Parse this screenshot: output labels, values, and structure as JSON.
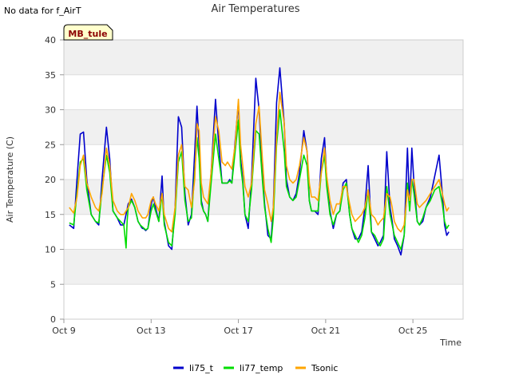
{
  "notice": "No data for f_AirT",
  "badge": "MB_tule",
  "colors": {
    "li75_t": "#0000cc",
    "li77_temp": "#00dd00",
    "Tsonic": "#ffa500",
    "band": "#f0f0f0",
    "grid": "#dddddd",
    "badge_fill": "#ffffcc"
  },
  "chart_data": {
    "type": "line",
    "title": "Air Temperatures",
    "xlabel": "Time",
    "ylabel": "Air Temperature (C)",
    "xlim": [
      9,
      27.3
    ],
    "ylim": [
      0,
      40
    ],
    "yticks": [
      0,
      5,
      10,
      15,
      20,
      25,
      30,
      35,
      40
    ],
    "xticks": [
      {
        "value": 9,
        "label": "Oct 9"
      },
      {
        "value": 13,
        "label": "Oct 13"
      },
      {
        "value": 17,
        "label": "Oct 17"
      },
      {
        "value": 21,
        "label": "Oct 21"
      },
      {
        "value": 25,
        "label": "Oct 25"
      }
    ],
    "legend_position": "bottom-center",
    "series": [
      {
        "name": "li75_t",
        "x": [
          9.25,
          9.45,
          9.6,
          9.75,
          9.9,
          10.05,
          10.25,
          10.45,
          10.6,
          10.75,
          10.95,
          11.1,
          11.25,
          11.45,
          11.6,
          11.75,
          11.95,
          12.1,
          12.25,
          12.4,
          12.5,
          12.55,
          12.6,
          12.65,
          12.75,
          12.85,
          13.0,
          13.1,
          13.2,
          13.35,
          13.5,
          13.6,
          13.8,
          13.95,
          14.1,
          14.25,
          14.4,
          14.55,
          14.7,
          14.85,
          15.0,
          15.1,
          15.2,
          15.3,
          15.4,
          15.5,
          15.6,
          15.75,
          15.95,
          16.1,
          16.25,
          16.4,
          16.5,
          16.6,
          16.7,
          16.85,
          17.0,
          17.1,
          17.2,
          17.3,
          17.45,
          17.6,
          17.8,
          17.95,
          18.1,
          18.2,
          18.35,
          18.5,
          18.6,
          18.75,
          18.9,
          19.1,
          19.2,
          19.35,
          19.5,
          19.65,
          19.8,
          20.0,
          20.15,
          20.25,
          20.35,
          20.5,
          20.65,
          20.8,
          20.95,
          21.05,
          21.2,
          21.35,
          21.5,
          21.65,
          21.8,
          21.95,
          22.1,
          22.2,
          22.35,
          22.5,
          22.65,
          22.8,
          22.95,
          23.1,
          23.25,
          23.4,
          23.5,
          23.65,
          23.8,
          23.95,
          24.05,
          24.15,
          24.3,
          24.45,
          24.6,
          24.75,
          24.85,
          24.95,
          25.05,
          25.2,
          25.3,
          25.45,
          25.6,
          25.8,
          26.0,
          26.2,
          26.35,
          26.45,
          26.55,
          26.65
        ],
        "y": [
          13.5,
          13.0,
          20.0,
          26.5,
          26.8,
          20.0,
          15.0,
          14.0,
          13.5,
          20.0,
          27.5,
          23.0,
          15.5,
          14.5,
          13.5,
          13.5,
          16.5,
          17.2,
          16.0,
          14.0,
          13.5,
          13.2,
          13.0,
          13.0,
          12.7,
          13.0,
          16.5,
          17.5,
          16.0,
          14.0,
          20.5,
          14.0,
          10.5,
          10.0,
          16.0,
          29.0,
          27.5,
          18.0,
          13.5,
          15.0,
          24.0,
          30.5,
          25.0,
          17.0,
          15.5,
          15.0,
          14.0,
          21.0,
          31.5,
          25.0,
          19.5,
          19.5,
          19.5,
          20.0,
          19.5,
          25.5,
          31.0,
          23.0,
          20.0,
          15.0,
          13.0,
          20.0,
          34.5,
          30.0,
          21.0,
          16.5,
          12.0,
          11.5,
          16.0,
          31.0,
          36.0,
          28.0,
          20.0,
          17.5,
          17.0,
          18.0,
          21.0,
          27.0,
          24.0,
          17.0,
          15.5,
          15.5,
          15.0,
          23.0,
          26.0,
          20.0,
          15.5,
          13.0,
          15.0,
          15.5,
          19.5,
          20.0,
          15.0,
          13.0,
          11.5,
          11.5,
          12.5,
          16.0,
          22.0,
          12.5,
          11.5,
          10.5,
          11.0,
          12.0,
          24.0,
          16.0,
          14.0,
          11.5,
          10.5,
          9.2,
          12.0,
          24.5,
          16.0,
          24.5,
          19.5,
          14.0,
          13.5,
          14.0,
          16.0,
          17.5,
          20.5,
          23.5,
          18.0,
          13.5,
          12.0,
          12.5
        ]
      },
      {
        "name": "li77_temp",
        "x": [
          9.25,
          9.45,
          9.6,
          9.75,
          9.9,
          10.05,
          10.25,
          10.45,
          10.6,
          10.75,
          10.95,
          11.1,
          11.25,
          11.45,
          11.6,
          11.75,
          11.85,
          11.9,
          11.95,
          12.1,
          12.25,
          12.4,
          12.5,
          12.6,
          12.75,
          12.85,
          13.0,
          13.1,
          13.2,
          13.35,
          13.5,
          13.6,
          13.8,
          13.95,
          14.1,
          14.25,
          14.4,
          14.55,
          14.7,
          14.85,
          15.0,
          15.1,
          15.2,
          15.3,
          15.4,
          15.5,
          15.6,
          15.75,
          15.95,
          16.1,
          16.25,
          16.4,
          16.5,
          16.6,
          16.7,
          16.85,
          17.0,
          17.1,
          17.2,
          17.3,
          17.45,
          17.6,
          17.8,
          17.95,
          18.1,
          18.2,
          18.35,
          18.5,
          18.6,
          18.75,
          18.9,
          19.1,
          19.2,
          19.35,
          19.5,
          19.65,
          19.8,
          20.0,
          20.15,
          20.25,
          20.35,
          20.5,
          20.65,
          20.8,
          20.95,
          21.05,
          21.2,
          21.35,
          21.5,
          21.65,
          21.8,
          21.95,
          22.1,
          22.2,
          22.35,
          22.5,
          22.65,
          22.8,
          22.95,
          23.1,
          23.25,
          23.4,
          23.5,
          23.65,
          23.8,
          23.95,
          24.05,
          24.15,
          24.3,
          24.45,
          24.6,
          24.75,
          24.85,
          24.95,
          25.05,
          25.2,
          25.3,
          25.45,
          25.6,
          25.8,
          26.0,
          26.2,
          26.35,
          26.45,
          26.55,
          26.65
        ],
        "y": [
          13.8,
          13.5,
          18.0,
          22.5,
          23.0,
          18.5,
          15.0,
          14.0,
          13.8,
          18.5,
          23.5,
          21.0,
          15.5,
          14.5,
          14.0,
          13.5,
          10.2,
          14.0,
          16.0,
          17.0,
          16.0,
          14.0,
          13.5,
          13.2,
          12.8,
          13.0,
          15.5,
          16.5,
          15.5,
          14.0,
          18.0,
          13.5,
          11.0,
          10.5,
          15.0,
          22.5,
          24.0,
          17.0,
          14.0,
          14.5,
          21.0,
          26.0,
          23.0,
          16.5,
          15.5,
          15.0,
          14.0,
          19.5,
          26.5,
          23.0,
          19.5,
          19.5,
          19.5,
          19.8,
          19.5,
          24.0,
          28.5,
          22.0,
          19.5,
          15.0,
          14.0,
          18.5,
          27.0,
          26.5,
          20.0,
          16.0,
          13.0,
          11.0,
          14.5,
          25.0,
          30.0,
          24.0,
          19.0,
          17.5,
          17.0,
          17.5,
          20.0,
          23.5,
          22.0,
          17.0,
          15.5,
          15.5,
          15.5,
          21.0,
          23.5,
          19.0,
          15.0,
          13.5,
          15.0,
          15.5,
          18.5,
          19.5,
          15.0,
          13.0,
          12.0,
          11.0,
          12.0,
          14.5,
          18.5,
          12.5,
          12.0,
          11.0,
          10.5,
          11.5,
          19.0,
          15.0,
          13.5,
          12.0,
          11.0,
          10.0,
          12.0,
          19.5,
          15.5,
          20.0,
          18.0,
          14.0,
          13.5,
          14.5,
          16.0,
          17.0,
          18.5,
          19.0,
          16.5,
          14.0,
          13.0,
          13.5
        ]
      },
      {
        "name": "Tsonic",
        "x": [
          9.25,
          9.45,
          9.6,
          9.75,
          9.9,
          10.05,
          10.25,
          10.45,
          10.6,
          10.75,
          10.95,
          11.1,
          11.25,
          11.45,
          11.6,
          11.75,
          11.95,
          12.1,
          12.25,
          12.4,
          12.5,
          12.6,
          12.75,
          12.85,
          13.0,
          13.1,
          13.2,
          13.35,
          13.5,
          13.6,
          13.8,
          13.95,
          14.1,
          14.25,
          14.4,
          14.55,
          14.7,
          14.85,
          15.0,
          15.1,
          15.2,
          15.3,
          15.4,
          15.5,
          15.6,
          15.75,
          15.95,
          16.1,
          16.25,
          16.4,
          16.5,
          16.6,
          16.7,
          16.85,
          17.0,
          17.1,
          17.2,
          17.3,
          17.45,
          17.6,
          17.8,
          17.95,
          18.1,
          18.2,
          18.35,
          18.5,
          18.6,
          18.75,
          18.9,
          19.1,
          19.2,
          19.35,
          19.5,
          19.65,
          19.8,
          20.0,
          20.15,
          20.25,
          20.35,
          20.5,
          20.65,
          20.8,
          20.95,
          21.05,
          21.2,
          21.35,
          21.5,
          21.65,
          21.8,
          21.95,
          22.1,
          22.2,
          22.35,
          22.5,
          22.65,
          22.8,
          22.95,
          23.1,
          23.25,
          23.4,
          23.5,
          23.65,
          23.8,
          23.95,
          24.05,
          24.15,
          24.3,
          24.45,
          24.6,
          24.75,
          24.85,
          24.95,
          25.05,
          25.2,
          25.3,
          25.45,
          25.6,
          25.8,
          26.0,
          26.2,
          26.35,
          26.45,
          26.55,
          26.65
        ],
        "y": [
          16.0,
          15.2,
          17.5,
          22.0,
          23.5,
          19.5,
          17.5,
          16.0,
          15.5,
          18.0,
          24.5,
          22.0,
          17.0,
          15.5,
          15.0,
          15.0,
          16.0,
          18.0,
          17.0,
          15.5,
          15.0,
          14.5,
          14.5,
          15.0,
          17.0,
          17.5,
          16.5,
          15.5,
          18.0,
          15.0,
          13.0,
          12.5,
          16.0,
          23.5,
          25.0,
          19.0,
          18.5,
          16.0,
          20.0,
          28.0,
          27.0,
          19.5,
          17.5,
          17.0,
          16.5,
          21.0,
          29.0,
          27.0,
          22.5,
          22.0,
          22.5,
          22.0,
          21.5,
          25.0,
          31.5,
          25.0,
          22.0,
          19.0,
          17.5,
          19.5,
          28.0,
          30.5,
          23.0,
          18.5,
          16.5,
          14.0,
          16.0,
          26.0,
          32.5,
          28.0,
          22.0,
          20.0,
          19.5,
          20.0,
          22.0,
          26.0,
          24.0,
          19.5,
          17.5,
          17.5,
          17.0,
          21.0,
          24.5,
          20.5,
          17.0,
          15.0,
          16.5,
          16.5,
          19.0,
          19.0,
          16.5,
          15.0,
          14.0,
          14.5,
          15.0,
          16.0,
          18.5,
          15.0,
          14.5,
          13.5,
          14.0,
          14.5,
          18.0,
          17.5,
          16.0,
          14.0,
          13.0,
          12.5,
          13.5,
          18.5,
          17.0,
          20.0,
          20.0,
          16.5,
          16.0,
          16.5,
          17.0,
          18.0,
          19.0,
          20.0,
          18.0,
          16.5,
          15.5,
          16.0
        ]
      }
    ]
  }
}
